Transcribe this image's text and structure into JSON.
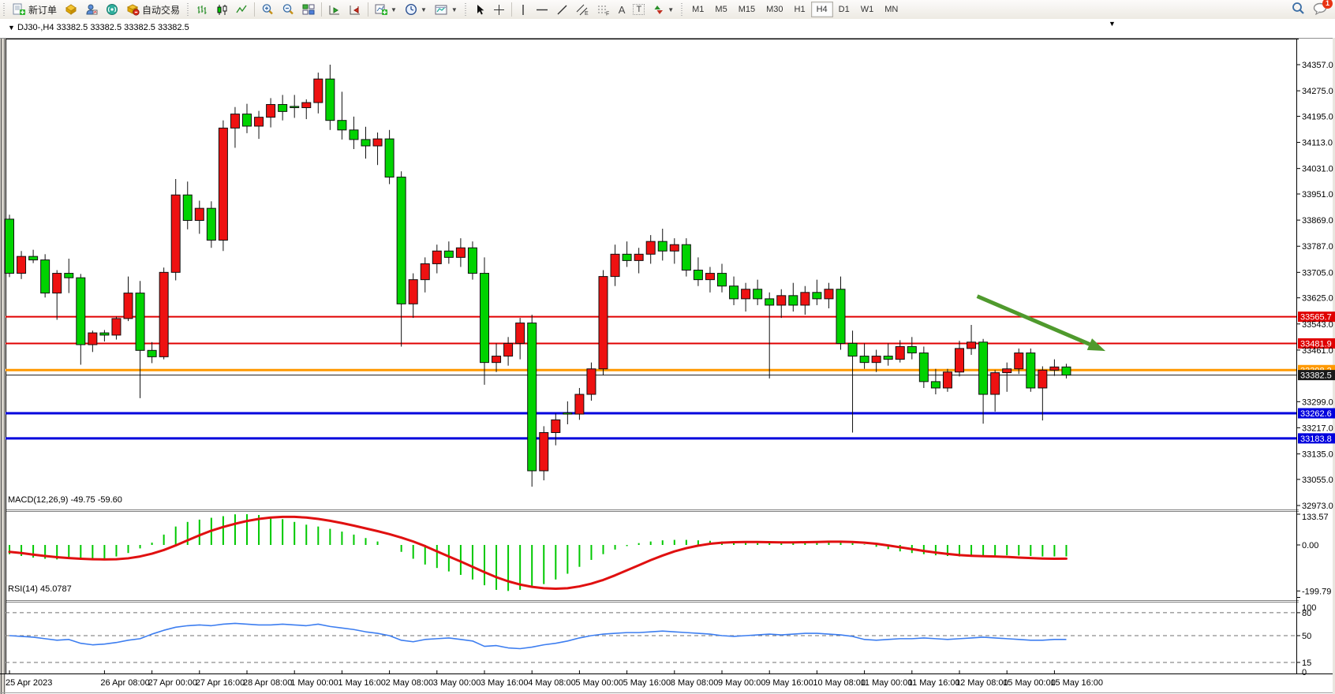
{
  "toolbar": {
    "new_order": "新订单",
    "auto_trading": "自动交易",
    "timeframes": [
      "M1",
      "M5",
      "M15",
      "M30",
      "H1",
      "H4",
      "D1",
      "W1",
      "MN"
    ],
    "active_timeframe": "H4",
    "notification_badge": "1",
    "tool_letters": {
      "channel": "E",
      "fibonacci": "F",
      "text": "A",
      "label": "T"
    }
  },
  "window": {
    "collapse_arrow": "▼",
    "title": "DJ30-,H4  33382.5 33382.5 33382.5 33382.5",
    "shift_marker": "▼"
  },
  "chart_data": {
    "type": "candlestick",
    "symbol": "DJ30-",
    "timeframe": "H4",
    "title": "DJ30-,H4  33382.5 33382.5 33382.5 33382.5",
    "current_price": 33382.5,
    "ylim": [
      32973,
      34357
    ],
    "up_color": "#ee1111",
    "down_color": "#00d300",
    "wick_color": "#111111",
    "price_ticks": [
      34357,
      34275,
      34195,
      34113,
      34031,
      33951,
      33869,
      33787,
      33705,
      33625,
      33543,
      33461,
      33299,
      33217,
      33135,
      33055,
      32973
    ],
    "time_labels": [
      {
        "bar": 0,
        "label": "25 Apr 2023"
      },
      {
        "bar": 8,
        "label": "26 Apr 08:00"
      },
      {
        "bar": 12,
        "label": "27 Apr 00:00"
      },
      {
        "bar": 16,
        "label": "27 Apr 16:00"
      },
      {
        "bar": 20,
        "label": "28 Apr 08:00"
      },
      {
        "bar": 24,
        "label": "1 May 00:00"
      },
      {
        "bar": 28,
        "label": "1 May 16:00"
      },
      {
        "bar": 32,
        "label": "2 May 08:00"
      },
      {
        "bar": 36,
        "label": "3 May 00:00"
      },
      {
        "bar": 40,
        "label": "3 May 16:00"
      },
      {
        "bar": 44,
        "label": "4 May 08:00"
      },
      {
        "bar": 48,
        "label": "5 May 00:00"
      },
      {
        "bar": 52,
        "label": "5 May 16:00"
      },
      {
        "bar": 56,
        "label": "8 May 08:00"
      },
      {
        "bar": 60,
        "label": "9 May 00:00"
      },
      {
        "bar": 64,
        "label": "9 May 16:00"
      },
      {
        "bar": 68,
        "label": "10 May 08:00"
      },
      {
        "bar": 72,
        "label": "11 May 00:00"
      },
      {
        "bar": 76,
        "label": "11 May 16:00"
      },
      {
        "bar": 80,
        "label": "12 May 08:00"
      },
      {
        "bar": 84,
        "label": "15 May 00:00"
      },
      {
        "bar": 88,
        "label": "15 May 16:00"
      }
    ],
    "levels": [
      {
        "price": 33565.7,
        "color": "#e00000",
        "width": 2
      },
      {
        "price": 33481.9,
        "color": "#e00000",
        "width": 2
      },
      {
        "price": 33398.2,
        "color": "#ff9900",
        "width": 3
      },
      {
        "price": 33382.5,
        "color": "#1a1a1a",
        "width": 1
      },
      {
        "price": 33262.6,
        "color": "#0000dd",
        "width": 3
      },
      {
        "price": 33183.8,
        "color": "#0000dd",
        "width": 3
      }
    ],
    "trend_arrow": {
      "from_bar": 81.5,
      "from_price": 33630,
      "to_bar": 92.3,
      "to_price": 33458,
      "color": "#4f9a2d"
    },
    "ohlc": [
      [
        33872,
        33886,
        33690,
        33702
      ],
      [
        33702,
        33772,
        33684,
        33755
      ],
      [
        33755,
        33776,
        33734,
        33744
      ],
      [
        33744,
        33762,
        33626,
        33640
      ],
      [
        33640,
        33712,
        33556,
        33702
      ],
      [
        33702,
        33748,
        33640,
        33688
      ],
      [
        33688,
        33700,
        33415,
        33478
      ],
      [
        33478,
        33522,
        33455,
        33515
      ],
      [
        33515,
        33524,
        33488,
        33508
      ],
      [
        33508,
        33566,
        33494,
        33560
      ],
      [
        33560,
        33692,
        33552,
        33640
      ],
      [
        33640,
        33678,
        33310,
        33460
      ],
      [
        33460,
        33486,
        33420,
        33440
      ],
      [
        33440,
        33720,
        33432,
        33705
      ],
      [
        33705,
        33998,
        33680,
        33948
      ],
      [
        33948,
        33990,
        33840,
        33868
      ],
      [
        33868,
        33930,
        33826,
        33906
      ],
      [
        33906,
        33928,
        33782,
        33806
      ],
      [
        33806,
        34182,
        33772,
        34158
      ],
      [
        34158,
        34224,
        34096,
        34202
      ],
      [
        34202,
        34234,
        34142,
        34164
      ],
      [
        34164,
        34212,
        34124,
        34192
      ],
      [
        34192,
        34252,
        34160,
        34232
      ],
      [
        34232,
        34262,
        34182,
        34210
      ],
      [
        34226,
        34262,
        34190,
        34222
      ],
      [
        34222,
        34248,
        34186,
        34238
      ],
      [
        34238,
        34332,
        34204,
        34312
      ],
      [
        34312,
        34357,
        34152,
        34182
      ],
      [
        34182,
        34272,
        34122,
        34152
      ],
      [
        34152,
        34194,
        34092,
        34122
      ],
      [
        34122,
        34162,
        34062,
        34102
      ],
      [
        34102,
        34144,
        34042,
        34124
      ],
      [
        34124,
        34152,
        33982,
        34004
      ],
      [
        34004,
        34022,
        33472,
        33606
      ],
      [
        33606,
        33702,
        33562,
        33682
      ],
      [
        33682,
        33752,
        33642,
        33732
      ],
      [
        33732,
        33792,
        33702,
        33772
      ],
      [
        33772,
        33802,
        33732,
        33752
      ],
      [
        33752,
        33812,
        33722,
        33782
      ],
      [
        33782,
        33802,
        33682,
        33702
      ],
      [
        33702,
        33752,
        33352,
        33422
      ],
      [
        33422,
        33482,
        33392,
        33442
      ],
      [
        33442,
        33502,
        33412,
        33482
      ],
      [
        33482,
        33562,
        33432,
        33546
      ],
      [
        33546,
        33572,
        33032,
        33082
      ],
      [
        33082,
        33222,
        33052,
        33202
      ],
      [
        33202,
        33262,
        33162,
        33242
      ],
      [
        33264,
        33300,
        33228,
        33260
      ],
      [
        33260,
        33342,
        33242,
        33322
      ],
      [
        33322,
        33422,
        33302,
        33402
      ],
      [
        33402,
        33712,
        33382,
        33692
      ],
      [
        33692,
        33792,
        33662,
        33762
      ],
      [
        33762,
        33802,
        33722,
        33742
      ],
      [
        33742,
        33782,
        33702,
        33762
      ],
      [
        33762,
        33822,
        33732,
        33802
      ],
      [
        33802,
        33842,
        33742,
        33772
      ],
      [
        33772,
        33812,
        33732,
        33792
      ],
      [
        33792,
        33812,
        33692,
        33712
      ],
      [
        33712,
        33752,
        33662,
        33682
      ],
      [
        33682,
        33722,
        33642,
        33702
      ],
      [
        33702,
        33732,
        33642,
        33662
      ],
      [
        33662,
        33692,
        33602,
        33622
      ],
      [
        33622,
        33672,
        33582,
        33652
      ],
      [
        33652,
        33682,
        33602,
        33622
      ],
      [
        33622,
        33642,
        33372,
        33602
      ],
      [
        33602,
        33652,
        33562,
        33632
      ],
      [
        33632,
        33672,
        33582,
        33602
      ],
      [
        33602,
        33662,
        33572,
        33642
      ],
      [
        33642,
        33682,
        33602,
        33622
      ],
      [
        33622,
        33672,
        33592,
        33652
      ],
      [
        33652,
        33692,
        33462,
        33482
      ],
      [
        33482,
        33522,
        33202,
        33442
      ],
      [
        33442,
        33482,
        33402,
        33422
      ],
      [
        33422,
        33462,
        33392,
        33442
      ],
      [
        33442,
        33482,
        33412,
        33432
      ],
      [
        33432,
        33492,
        33422,
        33472
      ],
      [
        33472,
        33502,
        33432,
        33452
      ],
      [
        33452,
        33472,
        33342,
        33362
      ],
      [
        33362,
        33402,
        33322,
        33342
      ],
      [
        33342,
        33402,
        33330,
        33392
      ],
      [
        33392,
        33490,
        33378,
        33466
      ],
      [
        33466,
        33540,
        33446,
        33486
      ],
      [
        33486,
        33496,
        33230,
        33322
      ],
      [
        33322,
        33398,
        33268,
        33390
      ],
      [
        33390,
        33422,
        33330,
        33402
      ],
      [
        33402,
        33466,
        33386,
        33452
      ],
      [
        33452,
        33466,
        33330,
        33342
      ],
      [
        33342,
        33410,
        33240,
        33398
      ],
      [
        33398,
        33432,
        33380,
        33408
      ],
      [
        33408,
        33418,
        33372,
        33382.5
      ]
    ],
    "macd": {
      "label": "MACD(12,26,9) -49.75 -59.60",
      "params": "12,26,9",
      "value": -49.75,
      "signal_value": -59.6,
      "axis_ticks": [
        133.57,
        0,
        -199.79
      ],
      "histogram_color": "#00c800",
      "signal_color": "#e01010",
      "histogram": [
        -40,
        -48,
        -55,
        -60,
        -63,
        -60,
        -65,
        -65,
        -60,
        -50,
        -35,
        -15,
        10,
        45,
        80,
        100,
        110,
        118,
        125,
        133,
        133.5,
        130,
        122,
        112,
        100,
        88,
        80,
        70,
        58,
        45,
        30,
        15,
        0,
        -30,
        -60,
        -85,
        -100,
        -115,
        -130,
        -150,
        -175,
        -195,
        -199.8,
        -195,
        -185,
        -170,
        -150,
        -125,
        -95,
        -65,
        -40,
        -20,
        -5,
        8,
        15,
        20,
        22,
        22,
        20,
        18,
        15,
        12,
        10,
        8,
        8,
        10,
        12,
        14,
        15,
        14,
        12,
        8,
        2,
        -8,
        -18,
        -28,
        -35,
        -40,
        -45,
        -48,
        -50,
        -50,
        -48,
        -46,
        -45,
        -46,
        -48,
        -50,
        -50,
        -49.75
      ],
      "signal": [
        -30,
        -35,
        -42,
        -48,
        -53,
        -57,
        -60,
        -62,
        -63,
        -62,
        -58,
        -50,
        -38,
        -22,
        -2,
        20,
        42,
        62,
        78,
        92,
        104,
        113,
        119,
        122,
        122,
        119,
        113,
        105,
        95,
        84,
        72,
        60,
        47,
        32,
        15,
        -5,
        -28,
        -50,
        -72,
        -95,
        -118,
        -140,
        -158,
        -172,
        -182,
        -188,
        -190,
        -188,
        -180,
        -168,
        -152,
        -132,
        -110,
        -88,
        -66,
        -46,
        -28,
        -14,
        -3,
        5,
        10,
        12,
        13,
        13,
        12,
        11,
        11,
        12,
        13,
        14,
        14,
        13,
        10,
        5,
        -2,
        -10,
        -18,
        -26,
        -33,
        -39,
        -44,
        -47,
        -49,
        -50,
        -52,
        -55,
        -57,
        -59,
        -60,
        -59.6
      ]
    },
    "rsi": {
      "label": "RSI(14) 45.0787",
      "period": 14,
      "value": 45.0787,
      "axis_ticks": [
        100,
        80,
        50,
        15,
        0
      ],
      "levels": [
        80,
        50,
        15
      ],
      "line_color": "#3d7ef0",
      "values": [
        50,
        49,
        48,
        46,
        44,
        45,
        40,
        38,
        39,
        41,
        44,
        46,
        52,
        57,
        61,
        63,
        64,
        63,
        65,
        66,
        65,
        64,
        64,
        65,
        64,
        63,
        65,
        62,
        60,
        58,
        55,
        53,
        50,
        44,
        42,
        45,
        46,
        47,
        45,
        43,
        36,
        37,
        34,
        33,
        35,
        38,
        40,
        43,
        47,
        50,
        52,
        53,
        54,
        54,
        55,
        56,
        55,
        54,
        53,
        52,
        50,
        49,
        50,
        51,
        52,
        51,
        52,
        53,
        53,
        52,
        51,
        49,
        45,
        44,
        45,
        46,
        46,
        47,
        46,
        45,
        46,
        47,
        48,
        47,
        46,
        45,
        44,
        44,
        45,
        45.08
      ]
    }
  }
}
